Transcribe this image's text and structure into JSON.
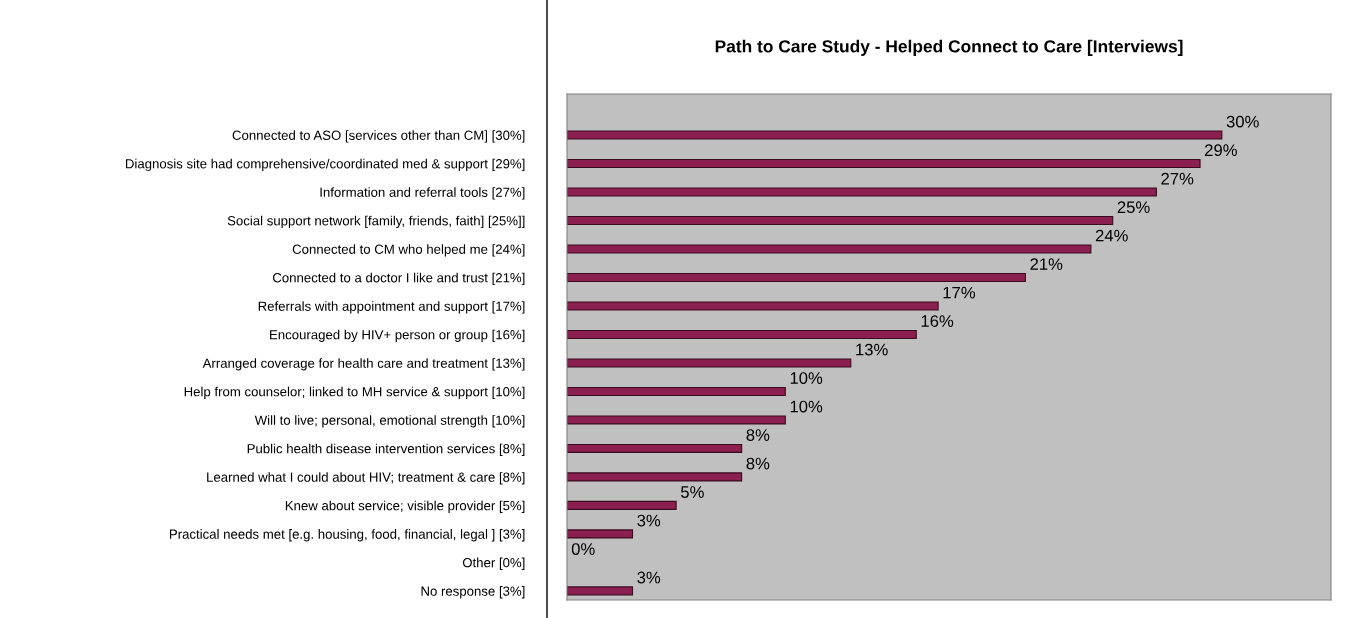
{
  "chart_data": {
    "type": "bar",
    "orientation": "horizontal",
    "title": "Path to Care Study - Helped Connect to Care [Interviews]",
    "categories": [
      "Connected to ASO [services other than CM] [30%]",
      "Diagnosis site had comprehensive/coordinated med & support [29%]",
      "Information and referral tools [27%]",
      "Social support network [family, friends, faith] [25%]]",
      "Connected to CM who helped me [24%]",
      "Connected to a doctor I like and trust [21%]",
      "Referrals with appointment and support [17%]",
      "Encouraged by HIV+ person or group [16%]",
      "Arranged coverage for health care and treatment [13%]",
      "Help from counselor; linked to MH service & support [10%]",
      "Will to live; personal, emotional strength [10%]",
      "Public health disease intervention services [8%]",
      "Learned what I could about HIV; treatment & care [8%]",
      "Knew about service; visible provider [5%]",
      "Practical needs met [e.g. housing, food, financial, legal ] [3%]",
      "Other [0%]",
      "No response [3%]"
    ],
    "values": [
      30,
      29,
      27,
      25,
      24,
      21,
      17,
      16,
      13,
      10,
      10,
      8,
      8,
      5,
      3,
      0,
      3
    ],
    "value_labels": [
      "30%",
      "29%",
      "27%",
      "25%",
      "24%",
      "21%",
      "17%",
      "16%",
      "13%",
      "10%",
      "10%",
      "8%",
      "8%",
      "5%",
      "3%",
      "0%",
      "3%"
    ],
    "color": "#8b1f4f",
    "xlim": [
      0,
      35
    ],
    "grid": false,
    "legend": false,
    "tick_labels": "y"
  }
}
